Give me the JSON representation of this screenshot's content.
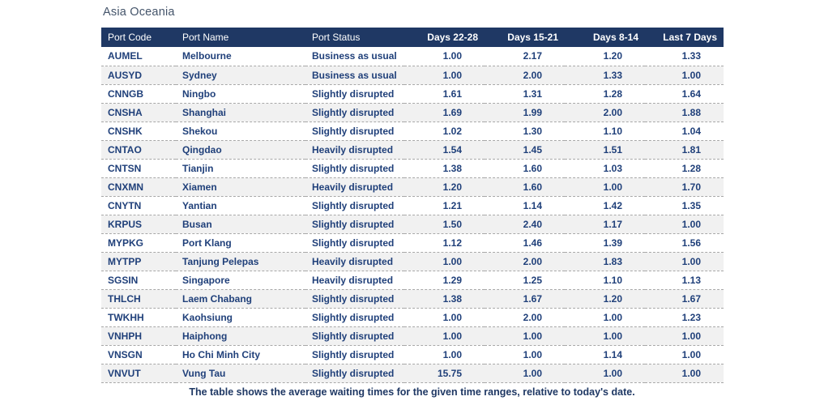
{
  "page": {
    "title": "Asia Oceania",
    "footnote": "The table shows the average waiting times for the given time ranges, relative to today's date."
  },
  "colors": {
    "header_bg": "#1f3864",
    "header_text": "#ffffff",
    "cell_text": "#20407a",
    "title_text": "#44546a",
    "alt_row_bg": "#f1f1f1",
    "row_divider": "#a8a8a8"
  },
  "table": {
    "columns": [
      "Port Code",
      "Port Name",
      "Port Status",
      "Days 22-28",
      "Days 15-21",
      "Days 8-14",
      "Last 7 Days"
    ],
    "rows": [
      {
        "port_code": "AUMEL",
        "port_name": "Melbourne",
        "port_status": "Business as usual",
        "days_22_28": "1.00",
        "days_15_21": "2.17",
        "days_8_14": "1.20",
        "last_7_days": "1.33"
      },
      {
        "port_code": "AUSYD",
        "port_name": "Sydney",
        "port_status": "Business as usual",
        "days_22_28": "1.00",
        "days_15_21": "2.00",
        "days_8_14": "1.33",
        "last_7_days": "1.00"
      },
      {
        "port_code": "CNNGB",
        "port_name": "Ningbo",
        "port_status": "Slightly disrupted",
        "days_22_28": "1.61",
        "days_15_21": "1.31",
        "days_8_14": "1.28",
        "last_7_days": "1.64"
      },
      {
        "port_code": "CNSHA",
        "port_name": "Shanghai",
        "port_status": "Slightly disrupted",
        "days_22_28": "1.69",
        "days_15_21": "1.99",
        "days_8_14": "2.00",
        "last_7_days": "1.88"
      },
      {
        "port_code": "CNSHK",
        "port_name": "Shekou",
        "port_status": "Slightly disrupted",
        "days_22_28": "1.02",
        "days_15_21": "1.30",
        "days_8_14": "1.10",
        "last_7_days": "1.04"
      },
      {
        "port_code": "CNTAO",
        "port_name": "Qingdao",
        "port_status": "Heavily disrupted",
        "days_22_28": "1.54",
        "days_15_21": "1.45",
        "days_8_14": "1.51",
        "last_7_days": "1.81"
      },
      {
        "port_code": "CNTSN",
        "port_name": "Tianjin",
        "port_status": "Slightly disrupted",
        "days_22_28": "1.38",
        "days_15_21": "1.60",
        "days_8_14": "1.03",
        "last_7_days": "1.28"
      },
      {
        "port_code": "CNXMN",
        "port_name": "Xiamen",
        "port_status": "Heavily disrupted",
        "days_22_28": "1.20",
        "days_15_21": "1.60",
        "days_8_14": "1.00",
        "last_7_days": "1.70"
      },
      {
        "port_code": "CNYTN",
        "port_name": "Yantian",
        "port_status": "Slightly disrupted",
        "days_22_28": "1.21",
        "days_15_21": "1.14",
        "days_8_14": "1.42",
        "last_7_days": "1.35"
      },
      {
        "port_code": "KRPUS",
        "port_name": "Busan",
        "port_status": "Slightly disrupted",
        "days_22_28": "1.50",
        "days_15_21": "2.40",
        "days_8_14": "1.17",
        "last_7_days": "1.00"
      },
      {
        "port_code": "MYPKG",
        "port_name": "Port Klang",
        "port_status": "Slightly disrupted",
        "days_22_28": "1.12",
        "days_15_21": "1.46",
        "days_8_14": "1.39",
        "last_7_days": "1.56"
      },
      {
        "port_code": "MYTPP",
        "port_name": "Tanjung Pelepas",
        "port_status": "Heavily disrupted",
        "days_22_28": "1.00",
        "days_15_21": "2.00",
        "days_8_14": "1.83",
        "last_7_days": "1.00"
      },
      {
        "port_code": "SGSIN",
        "port_name": "Singapore",
        "port_status": "Heavily disrupted",
        "days_22_28": "1.29",
        "days_15_21": "1.25",
        "days_8_14": "1.10",
        "last_7_days": "1.13"
      },
      {
        "port_code": "THLCH",
        "port_name": "Laem Chabang",
        "port_status": "Slightly disrupted",
        "days_22_28": "1.38",
        "days_15_21": "1.67",
        "days_8_14": "1.20",
        "last_7_days": "1.67"
      },
      {
        "port_code": "TWKHH",
        "port_name": "Kaohsiung",
        "port_status": "Slightly disrupted",
        "days_22_28": "1.00",
        "days_15_21": "2.00",
        "days_8_14": "1.00",
        "last_7_days": "1.23"
      },
      {
        "port_code": "VNHPH",
        "port_name": "Haiphong",
        "port_status": "Slightly disrupted",
        "days_22_28": "1.00",
        "days_15_21": "1.00",
        "days_8_14": "1.00",
        "last_7_days": "1.00"
      },
      {
        "port_code": "VNSGN",
        "port_name": "Ho Chi Minh City",
        "port_status": "Slightly disrupted",
        "days_22_28": "1.00",
        "days_15_21": "1.00",
        "days_8_14": "1.14",
        "last_7_days": "1.00"
      },
      {
        "port_code": "VNVUT",
        "port_name": "Vung Tau",
        "port_status": "Slightly disrupted",
        "days_22_28": "15.75",
        "days_15_21": "1.00",
        "days_8_14": "1.00",
        "last_7_days": "1.00"
      }
    ]
  }
}
